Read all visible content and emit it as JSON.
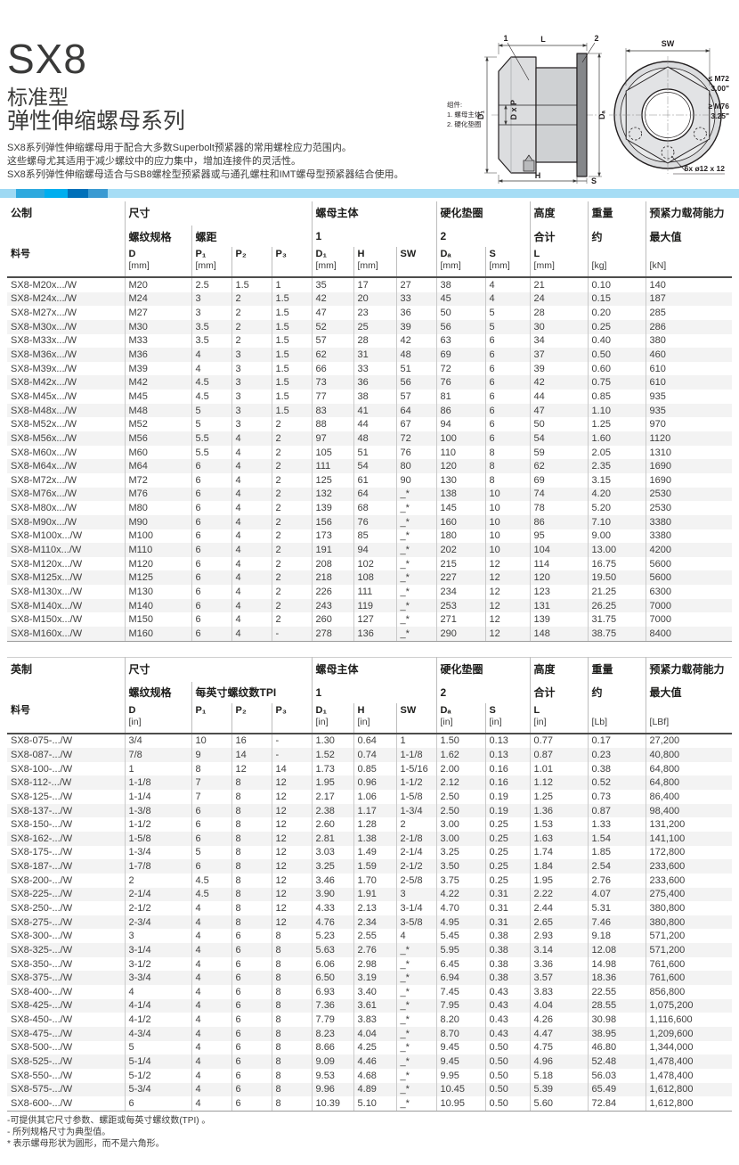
{
  "header": {
    "title": "SX8",
    "subtitle1": "标准型",
    "subtitle2": "弹性伸缩螺母系列",
    "desc1": "SX8系列弹性伸缩螺母用于配合大多数Superbolt预紧器的常用螺栓应力范围内。",
    "desc2": "这些螺母尤其适用于减少螺纹中的应力集中，增加连接件的灵活性。",
    "desc3": "SX8系列弹性伸缩螺母适合与SB8螺栓型预紧器或与通孔螺柱和IMT螺母型预紧器结合使用。"
  },
  "colors": {
    "accent_light_blue": "#a6ddf5",
    "accent_mid_blue": "#2ea9de",
    "accent_cyan": "#00aeef",
    "accent_dark_blue": "#0070b9"
  },
  "diagram": {
    "components_title": "组件:",
    "component_1": "1. 螺母主体",
    "component_2": "2. 硬化垫圈",
    "callout_1": "1",
    "callout_2": "2",
    "dim_L": "L",
    "dim_SW": "SW",
    "dim_D1": "D₁",
    "dim_DxP": "D x P",
    "dim_Da": "Dₐ",
    "dim_H": "H",
    "dim_S": "S",
    "note_small": "≤ M72",
    "note_small_in": "3.00\"",
    "note_large": "≥ M76",
    "note_large_in": "3.25\"",
    "hole_note": "6x ø12 x 12"
  },
  "metric": {
    "h1": {
      "region": "公制",
      "size": "尺寸",
      "nut": "螺母主体",
      "washer": "硬化垫圈",
      "height": "高度",
      "weight": "重量",
      "preload": "预紧力载荷能力"
    },
    "h2": {
      "thread": "螺纹规格",
      "pitch": "螺距",
      "nut_no": "1",
      "washer_no": "2",
      "total": "合计",
      "approx": "约",
      "max": "最大值"
    },
    "h3": [
      {
        "t": "料号",
        "u": ""
      },
      {
        "t": "D",
        "u": "[mm]"
      },
      {
        "t": "P₁",
        "u": "[mm]"
      },
      {
        "t": "P₂",
        "u": ""
      },
      {
        "t": "P₃",
        "u": ""
      },
      {
        "t": "D₁",
        "u": "[mm]"
      },
      {
        "t": "H",
        "u": "[mm]"
      },
      {
        "t": "SW",
        "u": ""
      },
      {
        "t": "Dₐ",
        "u": "[mm]"
      },
      {
        "t": "S",
        "u": "[mm]"
      },
      {
        "t": "L",
        "u": "[mm]"
      },
      {
        "t": "",
        "u": "[kg]"
      },
      {
        "t": "",
        "u": "[kN]"
      }
    ],
    "rows": [
      [
        "SX8-M20x.../W",
        "M20",
        "2.5",
        "1.5",
        "1",
        "35",
        "17",
        "27",
        "38",
        "4",
        "21",
        "0.10",
        "140"
      ],
      [
        "SX8-M24x.../W",
        "M24",
        "3",
        "2",
        "1.5",
        "42",
        "20",
        "33",
        "45",
        "4",
        "24",
        "0.15",
        "187"
      ],
      [
        "SX8-M27x.../W",
        "M27",
        "3",
        "2",
        "1.5",
        "47",
        "23",
        "36",
        "50",
        "5",
        "28",
        "0.20",
        "285"
      ],
      [
        "SX8-M30x.../W",
        "M30",
        "3.5",
        "2",
        "1.5",
        "52",
        "25",
        "39",
        "56",
        "5",
        "30",
        "0.25",
        "286"
      ],
      [
        "SX8-M33x.../W",
        "M33",
        "3.5",
        "2",
        "1.5",
        "57",
        "28",
        "42",
        "63",
        "6",
        "34",
        "0.40",
        "380"
      ],
      [
        "SX8-M36x.../W",
        "M36",
        "4",
        "3",
        "1.5",
        "62",
        "31",
        "48",
        "69",
        "6",
        "37",
        "0.50",
        "460"
      ],
      [
        "SX8-M39x.../W",
        "M39",
        "4",
        "3",
        "1.5",
        "66",
        "33",
        "51",
        "72",
        "6",
        "39",
        "0.60",
        "610"
      ],
      [
        "SX8-M42x.../W",
        "M42",
        "4.5",
        "3",
        "1.5",
        "73",
        "36",
        "56",
        "76",
        "6",
        "42",
        "0.75",
        "610"
      ],
      [
        "SX8-M45x.../W",
        "M45",
        "4.5",
        "3",
        "1.5",
        "77",
        "38",
        "57",
        "81",
        "6",
        "44",
        "0.85",
        "935"
      ],
      [
        "SX8-M48x.../W",
        "M48",
        "5",
        "3",
        "1.5",
        "83",
        "41",
        "64",
        "86",
        "6",
        "47",
        "1.10",
        "935"
      ],
      [
        "SX8-M52x.../W",
        "M52",
        "5",
        "3",
        "2",
        "88",
        "44",
        "67",
        "94",
        "6",
        "50",
        "1.25",
        "970"
      ],
      [
        "SX8-M56x.../W",
        "M56",
        "5.5",
        "4",
        "2",
        "97",
        "48",
        "72",
        "100",
        "6",
        "54",
        "1.60",
        "1120"
      ],
      [
        "SX8-M60x.../W",
        "M60",
        "5.5",
        "4",
        "2",
        "105",
        "51",
        "76",
        "110",
        "8",
        "59",
        "2.05",
        "1310"
      ],
      [
        "SX8-M64x.../W",
        "M64",
        "6",
        "4",
        "2",
        "111",
        "54",
        "80",
        "120",
        "8",
        "62",
        "2.35",
        "1690"
      ],
      [
        "SX8-M72x.../W",
        "M72",
        "6",
        "4",
        "2",
        "125",
        "61",
        "90",
        "130",
        "8",
        "69",
        "3.15",
        "1690"
      ],
      [
        "SX8-M76x.../W",
        "M76",
        "6",
        "4",
        "2",
        "132",
        "64",
        "_*",
        "138",
        "10",
        "74",
        "4.20",
        "2530"
      ],
      [
        "SX8-M80x.../W",
        "M80",
        "6",
        "4",
        "2",
        "139",
        "68",
        "_*",
        "145",
        "10",
        "78",
        "5.20",
        "2530"
      ],
      [
        "SX8-M90x.../W",
        "M90",
        "6",
        "4",
        "2",
        "156",
        "76",
        "_*",
        "160",
        "10",
        "86",
        "7.10",
        "3380"
      ],
      [
        "SX8-M100x.../W",
        "M100",
        "6",
        "4",
        "2",
        "173",
        "85",
        "_*",
        "180",
        "10",
        "95",
        "9.00",
        "3380"
      ],
      [
        "SX8-M110x.../W",
        "M110",
        "6",
        "4",
        "2",
        "191",
        "94",
        "_*",
        "202",
        "10",
        "104",
        "13.00",
        "4200"
      ],
      [
        "SX8-M120x.../W",
        "M120",
        "6",
        "4",
        "2",
        "208",
        "102",
        "_*",
        "215",
        "12",
        "114",
        "16.75",
        "5600"
      ],
      [
        "SX8-M125x.../W",
        "M125",
        "6",
        "4",
        "2",
        "218",
        "108",
        "_*",
        "227",
        "12",
        "120",
        "19.50",
        "5600"
      ],
      [
        "SX8-M130x.../W",
        "M130",
        "6",
        "4",
        "2",
        "226",
        "111",
        "_*",
        "234",
        "12",
        "123",
        "21.25",
        "6300"
      ],
      [
        "SX8-M140x.../W",
        "M140",
        "6",
        "4",
        "2",
        "243",
        "119",
        "_*",
        "253",
        "12",
        "131",
        "26.25",
        "7000"
      ],
      [
        "SX8-M150x.../W",
        "M150",
        "6",
        "4",
        "2",
        "260",
        "127",
        "_*",
        "271",
        "12",
        "139",
        "31.75",
        "7000"
      ],
      [
        "SX8-M160x.../W",
        "M160",
        "6",
        "4",
        "-",
        "278",
        "136",
        "_*",
        "290",
        "12",
        "148",
        "38.75",
        "8400"
      ]
    ]
  },
  "imperial": {
    "h1": {
      "region": "英制",
      "size": "尺寸",
      "nut": "螺母主体",
      "washer": "硬化垫圈",
      "height": "高度",
      "weight": "重量",
      "preload": "预紧力载荷能力"
    },
    "h2": {
      "thread": "螺纹规格",
      "pitch": "每英寸螺纹数TPI",
      "nut_no": "1",
      "washer_no": "2",
      "total": "合计",
      "approx": "约",
      "max": "最大值"
    },
    "h3": [
      {
        "t": "料号",
        "u": ""
      },
      {
        "t": "D",
        "u": "[in]"
      },
      {
        "t": "P₁",
        "u": ""
      },
      {
        "t": "P₂",
        "u": ""
      },
      {
        "t": "P₃",
        "u": ""
      },
      {
        "t": "D₁",
        "u": "[in]"
      },
      {
        "t": "H",
        "u": "[in]"
      },
      {
        "t": "SW",
        "u": ""
      },
      {
        "t": "Dₐ",
        "u": "[in]"
      },
      {
        "t": "S",
        "u": "[in]"
      },
      {
        "t": "L",
        "u": "[in]"
      },
      {
        "t": "",
        "u": "[Lb]"
      },
      {
        "t": "",
        "u": "[LBf]"
      }
    ],
    "rows": [
      [
        "SX8-075-.../W",
        "3/4",
        "10",
        "16",
        "-",
        "1.30",
        "0.64",
        "1",
        "1.50",
        "0.13",
        "0.77",
        "0.17",
        "27,200"
      ],
      [
        "SX8-087-.../W",
        "7/8",
        "9",
        "14",
        "-",
        "1.52",
        "0.74",
        "1-1/8",
        "1.62",
        "0.13",
        "0.87",
        "0.23",
        "40,800"
      ],
      [
        "SX8-100-.../W",
        "1",
        "8",
        "12",
        "14",
        "1.73",
        "0.85",
        "1-5/16",
        "2.00",
        "0.16",
        "1.01",
        "0.38",
        "64,800"
      ],
      [
        "SX8-112-.../W",
        "1-1/8",
        "7",
        "8",
        "12",
        "1.95",
        "0.96",
        "1-1/2",
        "2.12",
        "0.16",
        "1.12",
        "0.52",
        "64,800"
      ],
      [
        "SX8-125-.../W",
        "1-1/4",
        "7",
        "8",
        "12",
        "2.17",
        "1.06",
        "1-5/8",
        "2.50",
        "0.19",
        "1.25",
        "0.73",
        "86,400"
      ],
      [
        "SX8-137-.../W",
        "1-3/8",
        "6",
        "8",
        "12",
        "2.38",
        "1.17",
        "1-3/4",
        "2.50",
        "0.19",
        "1.36",
        "0.87",
        "98,400"
      ],
      [
        "SX8-150-.../W",
        "1-1/2",
        "6",
        "8",
        "12",
        "2.60",
        "1.28",
        "2",
        "3.00",
        "0.25",
        "1.53",
        "1.33",
        "131,200"
      ],
      [
        "SX8-162-.../W",
        "1-5/8",
        "6",
        "8",
        "12",
        "2.81",
        "1.38",
        "2-1/8",
        "3.00",
        "0.25",
        "1.63",
        "1.54",
        "141,100"
      ],
      [
        "SX8-175-.../W",
        "1-3/4",
        "5",
        "8",
        "12",
        "3.03",
        "1.49",
        "2-1/4",
        "3.25",
        "0.25",
        "1.74",
        "1.85",
        "172,800"
      ],
      [
        "SX8-187-.../W",
        "1-7/8",
        "6",
        "8",
        "12",
        "3.25",
        "1.59",
        "2-1/2",
        "3.50",
        "0.25",
        "1.84",
        "2.54",
        "233,600"
      ],
      [
        "SX8-200-.../W",
        "2",
        "4.5",
        "8",
        "12",
        "3.46",
        "1.70",
        "2-5/8",
        "3.75",
        "0.25",
        "1.95",
        "2.76",
        "233,600"
      ],
      [
        "SX8-225-.../W",
        "2-1/4",
        "4.5",
        "8",
        "12",
        "3.90",
        "1.91",
        "3",
        "4.22",
        "0.31",
        "2.22",
        "4.07",
        "275,400"
      ],
      [
        "SX8-250-.../W",
        "2-1/2",
        "4",
        "8",
        "12",
        "4.33",
        "2.13",
        "3-1/4",
        "4.70",
        "0.31",
        "2.44",
        "5.31",
        "380,800"
      ],
      [
        "SX8-275-.../W",
        "2-3/4",
        "4",
        "8",
        "12",
        "4.76",
        "2.34",
        "3-5/8",
        "4.95",
        "0.31",
        "2.65",
        "7.46",
        "380,800"
      ],
      [
        "SX8-300-.../W",
        "3",
        "4",
        "6",
        "8",
        "5.23",
        "2.55",
        "4",
        "5.45",
        "0.38",
        "2.93",
        "9.18",
        "571,200"
      ],
      [
        "SX8-325-.../W",
        "3-1/4",
        "4",
        "6",
        "8",
        "5.63",
        "2.76",
        "_*",
        "5.95",
        "0.38",
        "3.14",
        "12.08",
        "571,200"
      ],
      [
        "SX8-350-.../W",
        "3-1/2",
        "4",
        "6",
        "8",
        "6.06",
        "2.98",
        "_*",
        "6.45",
        "0.38",
        "3.36",
        "14.98",
        "761,600"
      ],
      [
        "SX8-375-.../W",
        "3-3/4",
        "4",
        "6",
        "8",
        "6.50",
        "3.19",
        "_*",
        "6.94",
        "0.38",
        "3.57",
        "18.36",
        "761,600"
      ],
      [
        "SX8-400-.../W",
        "4",
        "4",
        "6",
        "8",
        "6.93",
        "3.40",
        "_*",
        "7.45",
        "0.43",
        "3.83",
        "22.55",
        "856,800"
      ],
      [
        "SX8-425-.../W",
        "4-1/4",
        "4",
        "6",
        "8",
        "7.36",
        "3.61",
        "_*",
        "7.95",
        "0.43",
        "4.04",
        "28.55",
        "1,075,200"
      ],
      [
        "SX8-450-.../W",
        "4-1/2",
        "4",
        "6",
        "8",
        "7.79",
        "3.83",
        "_*",
        "8.20",
        "0.43",
        "4.26",
        "30.98",
        "1,116,600"
      ],
      [
        "SX8-475-.../W",
        "4-3/4",
        "4",
        "6",
        "8",
        "8.23",
        "4.04",
        "_*",
        "8.70",
        "0.43",
        "4.47",
        "38.95",
        "1,209,600"
      ],
      [
        "SX8-500-.../W",
        "5",
        "4",
        "6",
        "8",
        "8.66",
        "4.25",
        "_*",
        "9.45",
        "0.50",
        "4.75",
        "46.80",
        "1,344,000"
      ],
      [
        "SX8-525-.../W",
        "5-1/4",
        "4",
        "6",
        "8",
        "9.09",
        "4.46",
        "_*",
        "9.45",
        "0.50",
        "4.96",
        "52.48",
        "1,478,400"
      ],
      [
        "SX8-550-.../W",
        "5-1/2",
        "4",
        "6",
        "8",
        "9.53",
        "4.68",
        "_*",
        "9.95",
        "0.50",
        "5.18",
        "56.03",
        "1,478,400"
      ],
      [
        "SX8-575-.../W",
        "5-3/4",
        "4",
        "6",
        "8",
        "9.96",
        "4.89",
        "_*",
        "10.45",
        "0.50",
        "5.39",
        "65.49",
        "1,612,800"
      ],
      [
        "SX8-600-.../W",
        "6",
        "4",
        "6",
        "8",
        "10.39",
        "5.10",
        "_*",
        "10.95",
        "0.50",
        "5.60",
        "72.84",
        "1,612,800"
      ]
    ]
  },
  "footnotes": {
    "f1": "-可提供其它尺寸参数、螺距或每英寸螺纹数(TPI) 。",
    "f2": "- 所列规格尺寸为典型值。",
    "f3": "* 表示螺母形状为圆形，而不是六角形。"
  }
}
